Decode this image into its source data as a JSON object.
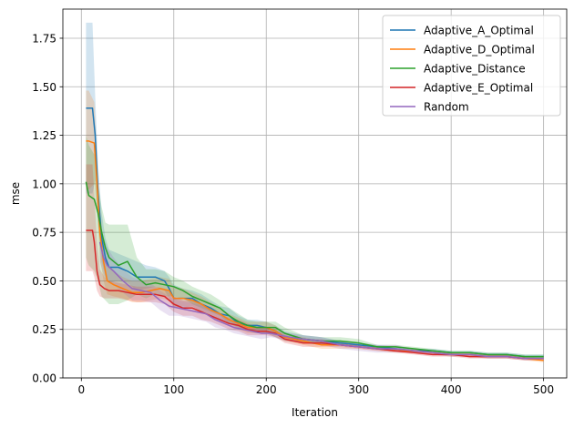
{
  "chart_data": {
    "type": "line",
    "title": "",
    "xlabel": "Iteration",
    "ylabel": "mse",
    "xlim": [
      -20,
      525
    ],
    "ylim": [
      0.0,
      1.9
    ],
    "xticks": [
      0,
      100,
      200,
      300,
      400,
      500
    ],
    "yticks": [
      0.0,
      0.25,
      0.5,
      0.75,
      1.0,
      1.25,
      1.5,
      1.75
    ],
    "ytick_labels": [
      "0.00",
      "0.25",
      "0.50",
      "0.75",
      "1.00",
      "1.25",
      "1.50",
      "1.75"
    ],
    "grid": true,
    "legend_position": "top-right",
    "series": [
      {
        "name": "Adaptive_A_Optimal",
        "color": "#1f77b4",
        "x": [
          5,
          12,
          15,
          18,
          22,
          26,
          30,
          40,
          50,
          60,
          70,
          80,
          90,
          95,
          100,
          110,
          120,
          130,
          140,
          150,
          160,
          170,
          180,
          190,
          200,
          210,
          220,
          240,
          260,
          280,
          300,
          320,
          340,
          360,
          380,
          400,
          420,
          440,
          460,
          480,
          500
        ],
        "y": [
          1.39,
          1.39,
          1.25,
          0.95,
          0.72,
          0.62,
          0.57,
          0.57,
          0.55,
          0.52,
          0.52,
          0.52,
          0.5,
          0.46,
          0.41,
          0.41,
          0.41,
          0.38,
          0.36,
          0.33,
          0.32,
          0.28,
          0.27,
          0.27,
          0.26,
          0.24,
          0.21,
          0.2,
          0.19,
          0.18,
          0.17,
          0.16,
          0.15,
          0.14,
          0.14,
          0.13,
          0.13,
          0.12,
          0.12,
          0.11,
          0.11
        ],
        "upper": [
          1.83,
          1.83,
          1.45,
          1.1,
          0.85,
          0.72,
          0.66,
          0.64,
          0.62,
          0.6,
          0.58,
          0.57,
          0.55,
          0.52,
          0.48,
          0.46,
          0.45,
          0.43,
          0.4,
          0.37,
          0.36,
          0.32,
          0.3,
          0.3,
          0.29,
          0.27,
          0.24,
          0.22,
          0.21,
          0.19,
          0.18,
          0.17,
          0.16,
          0.15,
          0.15,
          0.14,
          0.14,
          0.13,
          0.13,
          0.12,
          0.12
        ],
        "lower": [
          0.95,
          0.95,
          1.02,
          0.8,
          0.6,
          0.52,
          0.49,
          0.5,
          0.49,
          0.45,
          0.46,
          0.47,
          0.45,
          0.41,
          0.36,
          0.36,
          0.37,
          0.34,
          0.32,
          0.29,
          0.28,
          0.25,
          0.24,
          0.24,
          0.23,
          0.21,
          0.19,
          0.18,
          0.17,
          0.17,
          0.16,
          0.15,
          0.14,
          0.13,
          0.13,
          0.12,
          0.12,
          0.11,
          0.11,
          0.1,
          0.1
        ]
      },
      {
        "name": "Adaptive_D_Optimal",
        "color": "#ff7f0e",
        "x": [
          5,
          8,
          14,
          17,
          20,
          24,
          28,
          35,
          45,
          55,
          65,
          75,
          85,
          95,
          100,
          110,
          120,
          130,
          140,
          150,
          160,
          170,
          180,
          190,
          200,
          210,
          220,
          240,
          260,
          280,
          300,
          320,
          340,
          360,
          380,
          400,
          420,
          440,
          460,
          480,
          500
        ],
        "y": [
          1.22,
          1.22,
          1.21,
          1.0,
          0.75,
          0.6,
          0.5,
          0.48,
          0.46,
          0.44,
          0.44,
          0.45,
          0.46,
          0.45,
          0.41,
          0.41,
          0.4,
          0.38,
          0.35,
          0.33,
          0.3,
          0.28,
          0.26,
          0.26,
          0.26,
          0.24,
          0.21,
          0.19,
          0.17,
          0.17,
          0.16,
          0.15,
          0.14,
          0.14,
          0.13,
          0.12,
          0.12,
          0.11,
          0.11,
          0.1,
          0.09
        ],
        "upper": [
          1.48,
          1.48,
          1.42,
          1.15,
          0.88,
          0.7,
          0.58,
          0.55,
          0.52,
          0.5,
          0.5,
          0.51,
          0.52,
          0.51,
          0.47,
          0.46,
          0.44,
          0.42,
          0.39,
          0.36,
          0.33,
          0.31,
          0.29,
          0.29,
          0.29,
          0.27,
          0.23,
          0.21,
          0.19,
          0.19,
          0.17,
          0.16,
          0.15,
          0.15,
          0.14,
          0.13,
          0.13,
          0.12,
          0.12,
          0.11,
          0.1
        ],
        "lower": [
          0.97,
          0.97,
          1.0,
          0.85,
          0.62,
          0.5,
          0.43,
          0.42,
          0.41,
          0.39,
          0.39,
          0.4,
          0.41,
          0.4,
          0.36,
          0.37,
          0.36,
          0.34,
          0.31,
          0.3,
          0.27,
          0.25,
          0.23,
          0.23,
          0.23,
          0.21,
          0.19,
          0.17,
          0.15,
          0.15,
          0.15,
          0.14,
          0.13,
          0.13,
          0.12,
          0.11,
          0.11,
          0.1,
          0.1,
          0.09,
          0.08
        ]
      },
      {
        "name": "Adaptive_Distance",
        "color": "#2ca02c",
        "x": [
          5,
          8,
          14,
          18,
          22,
          26,
          30,
          40,
          50,
          60,
          70,
          80,
          90,
          100,
          110,
          120,
          130,
          140,
          150,
          160,
          170,
          180,
          190,
          200,
          210,
          220,
          240,
          260,
          280,
          300,
          320,
          340,
          360,
          380,
          400,
          420,
          440,
          460,
          480,
          500
        ],
        "y": [
          1.01,
          0.94,
          0.92,
          0.85,
          0.75,
          0.67,
          0.62,
          0.58,
          0.6,
          0.52,
          0.48,
          0.49,
          0.48,
          0.47,
          0.45,
          0.42,
          0.4,
          0.38,
          0.36,
          0.32,
          0.29,
          0.27,
          0.26,
          0.26,
          0.26,
          0.23,
          0.2,
          0.19,
          0.19,
          0.18,
          0.16,
          0.16,
          0.15,
          0.14,
          0.13,
          0.13,
          0.12,
          0.12,
          0.11,
          0.11
        ],
        "upper": [
          1.25,
          1.2,
          1.15,
          1.0,
          0.88,
          0.8,
          0.79,
          0.79,
          0.79,
          0.62,
          0.56,
          0.56,
          0.55,
          0.52,
          0.5,
          0.47,
          0.45,
          0.43,
          0.4,
          0.36,
          0.33,
          0.3,
          0.29,
          0.29,
          0.29,
          0.26,
          0.22,
          0.21,
          0.21,
          0.2,
          0.17,
          0.17,
          0.16,
          0.15,
          0.14,
          0.14,
          0.13,
          0.13,
          0.12,
          0.12
        ],
        "lower": [
          0.62,
          0.58,
          0.55,
          0.5,
          0.42,
          0.4,
          0.38,
          0.38,
          0.4,
          0.43,
          0.41,
          0.43,
          0.42,
          0.42,
          0.41,
          0.38,
          0.36,
          0.34,
          0.32,
          0.28,
          0.26,
          0.24,
          0.23,
          0.23,
          0.23,
          0.21,
          0.18,
          0.17,
          0.17,
          0.16,
          0.15,
          0.15,
          0.14,
          0.13,
          0.12,
          0.12,
          0.11,
          0.11,
          0.1,
          0.1
        ]
      },
      {
        "name": "Adaptive_E_Optimal",
        "color": "#d62728",
        "x": [
          5,
          12,
          14,
          17,
          20,
          25,
          30,
          40,
          50,
          60,
          70,
          80,
          90,
          100,
          110,
          120,
          130,
          140,
          150,
          160,
          170,
          180,
          190,
          200,
          210,
          220,
          240,
          260,
          280,
          300,
          320,
          340,
          360,
          380,
          400,
          420,
          440,
          460,
          480,
          500
        ],
        "y": [
          0.76,
          0.76,
          0.7,
          0.55,
          0.48,
          0.46,
          0.45,
          0.45,
          0.44,
          0.43,
          0.43,
          0.43,
          0.42,
          0.38,
          0.36,
          0.36,
          0.34,
          0.32,
          0.3,
          0.28,
          0.27,
          0.25,
          0.24,
          0.24,
          0.23,
          0.2,
          0.18,
          0.18,
          0.17,
          0.16,
          0.15,
          0.14,
          0.13,
          0.12,
          0.12,
          0.11,
          0.11,
          0.11,
          0.1,
          0.1
        ],
        "upper": [
          1.1,
          1.1,
          0.95,
          0.7,
          0.56,
          0.52,
          0.5,
          0.49,
          0.48,
          0.47,
          0.47,
          0.47,
          0.46,
          0.42,
          0.4,
          0.4,
          0.38,
          0.35,
          0.33,
          0.31,
          0.3,
          0.28,
          0.26,
          0.26,
          0.25,
          0.22,
          0.2,
          0.2,
          0.18,
          0.17,
          0.16,
          0.15,
          0.14,
          0.13,
          0.13,
          0.12,
          0.12,
          0.12,
          0.11,
          0.11
        ],
        "lower": [
          0.55,
          0.55,
          0.52,
          0.45,
          0.42,
          0.41,
          0.41,
          0.41,
          0.4,
          0.39,
          0.39,
          0.39,
          0.38,
          0.34,
          0.32,
          0.32,
          0.3,
          0.29,
          0.27,
          0.25,
          0.24,
          0.22,
          0.22,
          0.22,
          0.21,
          0.18,
          0.16,
          0.16,
          0.16,
          0.15,
          0.14,
          0.13,
          0.12,
          0.11,
          0.11,
          0.1,
          0.1,
          0.1,
          0.09,
          0.09
        ]
      },
      {
        "name": "Random",
        "color": "#9467bd",
        "x": [
          20,
          24,
          28,
          35,
          45,
          55,
          65,
          75,
          85,
          95,
          105,
          115,
          125,
          135,
          145,
          155,
          165,
          175,
          185,
          195,
          205,
          215,
          225,
          240,
          260,
          280,
          300,
          320,
          340,
          360,
          380,
          400,
          420,
          440,
          460,
          480,
          500
        ],
        "y": [
          0.7,
          0.62,
          0.58,
          0.55,
          0.5,
          0.46,
          0.45,
          0.44,
          0.4,
          0.37,
          0.36,
          0.35,
          0.34,
          0.33,
          0.3,
          0.28,
          0.26,
          0.25,
          0.24,
          0.23,
          0.23,
          0.22,
          0.21,
          0.2,
          0.19,
          0.17,
          0.16,
          0.15,
          0.15,
          0.14,
          0.13,
          0.12,
          0.12,
          0.11,
          0.11,
          0.1,
          0.1
        ],
        "upper": [
          0.8,
          0.72,
          0.67,
          0.62,
          0.56,
          0.52,
          0.5,
          0.49,
          0.45,
          0.42,
          0.4,
          0.39,
          0.38,
          0.37,
          0.34,
          0.31,
          0.29,
          0.28,
          0.27,
          0.26,
          0.25,
          0.24,
          0.23,
          0.22,
          0.21,
          0.19,
          0.18,
          0.17,
          0.17,
          0.15,
          0.14,
          0.13,
          0.13,
          0.12,
          0.12,
          0.11,
          0.11
        ],
        "lower": [
          0.6,
          0.53,
          0.5,
          0.48,
          0.44,
          0.4,
          0.4,
          0.39,
          0.35,
          0.32,
          0.32,
          0.31,
          0.3,
          0.29,
          0.26,
          0.25,
          0.23,
          0.22,
          0.21,
          0.2,
          0.21,
          0.2,
          0.19,
          0.18,
          0.17,
          0.15,
          0.14,
          0.13,
          0.13,
          0.13,
          0.12,
          0.11,
          0.11,
          0.1,
          0.1,
          0.09,
          0.09
        ]
      }
    ]
  }
}
